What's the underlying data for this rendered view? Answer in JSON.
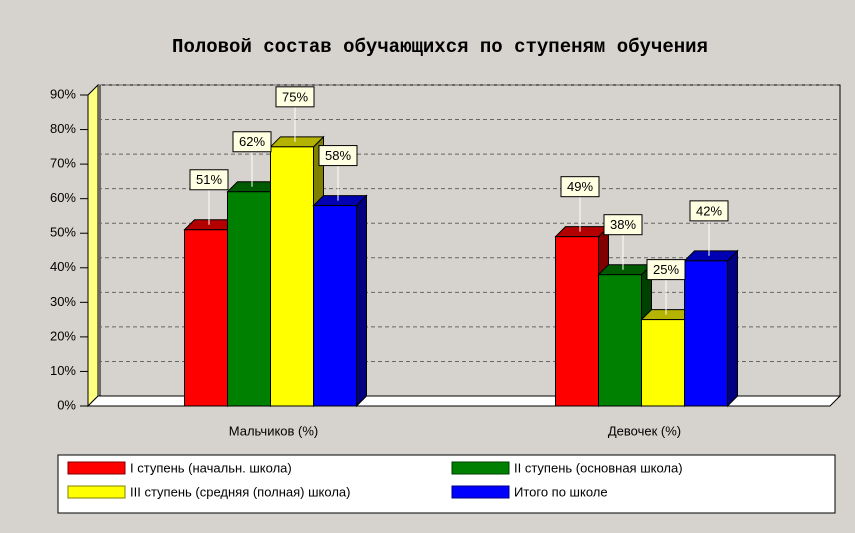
{
  "chart_data": {
    "type": "bar3d",
    "title": "Половой состав обучающихся по ступеням обучения",
    "categories": [
      "Мальчиков (%)",
      "Девочек (%)"
    ],
    "series": [
      {
        "name": "I ступень (начальн. школа)",
        "color": "#ff0000",
        "values": [
          51,
          49
        ],
        "value_labels": [
          "51%",
          "49%"
        ]
      },
      {
        "name": "II ступень (основная школа)",
        "color": "#008000",
        "values": [
          62,
          38
        ],
        "value_labels": [
          "62%",
          "38%"
        ]
      },
      {
        "name": "III ступень (средняя (полная) школа)",
        "color": "#ffff00",
        "values": [
          75,
          25
        ],
        "value_labels": [
          "75%",
          "25%"
        ]
      },
      {
        "name": "Итого по школе",
        "color": "#0000ff",
        "values": [
          58,
          42
        ],
        "value_labels": [
          "58%",
          "42%"
        ]
      }
    ],
    "ylim": [
      0,
      90
    ],
    "yticks": [
      {
        "value": 0,
        "label": "0%"
      },
      {
        "value": 10,
        "label": "10%"
      },
      {
        "value": 20,
        "label": "20%"
      },
      {
        "value": 30,
        "label": "30%"
      },
      {
        "value": 40,
        "label": "40%"
      },
      {
        "value": 50,
        "label": "50%"
      },
      {
        "value": 60,
        "label": "60%"
      },
      {
        "value": 70,
        "label": "70%"
      },
      {
        "value": 80,
        "label": "80%"
      },
      {
        "value": 90,
        "label": "90%"
      }
    ],
    "grid": true
  }
}
